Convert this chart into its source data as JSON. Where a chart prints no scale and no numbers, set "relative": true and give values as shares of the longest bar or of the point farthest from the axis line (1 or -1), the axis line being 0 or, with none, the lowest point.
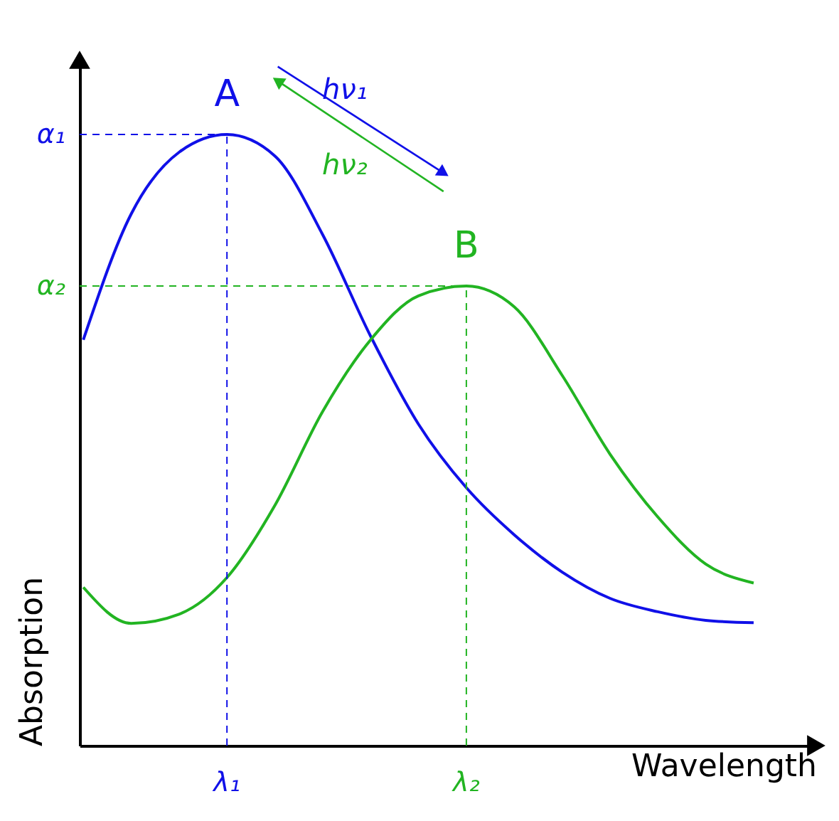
{
  "chart_data": {
    "type": "line",
    "xlabel": "Wavelength",
    "ylabel": "Absorption",
    "relative": true,
    "categories": [
      null,
      null,
      null,
      null,
      null,
      null,
      null,
      null,
      null,
      null,
      null,
      null,
      null,
      null,
      null
    ],
    "series": [
      {
        "color": "#1010e8",
        "values": [
          0.664,
          0.87,
          0.971,
          1,
          0.965,
          0.836,
          0.67,
          0.526,
          0.422,
          0.345,
          0.284,
          0.241,
          0.219,
          0.205,
          0.201
        ]
      },
      {
        "color": "#22b422",
        "values": [
          0.259,
          0.2,
          0.215,
          0.275,
          0.393,
          0.547,
          0.664,
          0.736,
          0.752,
          0.718,
          0.606,
          0.477,
          0.374,
          0.297,
          0.266
        ]
      }
    ],
    "ref_lines": [
      {
        "axis": "y",
        "value": 1,
        "color": "#1010e8",
        "line_style": "dashed"
      },
      {
        "axis": "y",
        "value": 0.752,
        "color": "#22b422",
        "line_style": "dashed"
      }
    ],
    "annotations": [
      "A",
      "B",
      "λ₁",
      "λ₂",
      "α₁",
      "α₂",
      "hν₁",
      "hν₂"
    ],
    "grid": false,
    "legend": false,
    "marker": "none",
    "line_style": "solid"
  }
}
